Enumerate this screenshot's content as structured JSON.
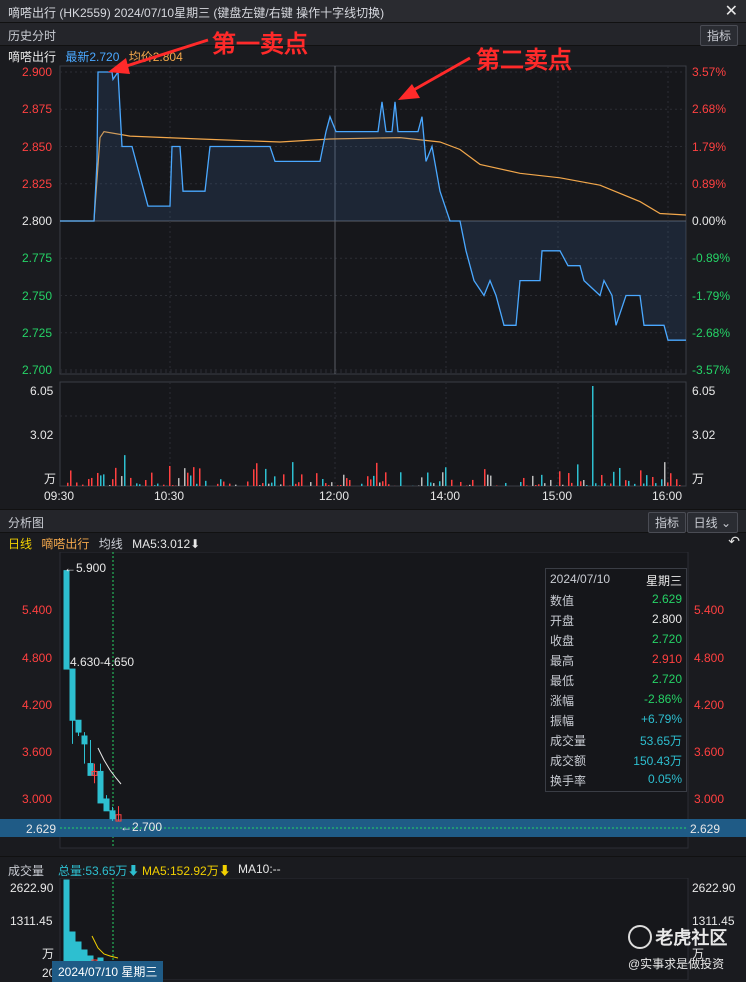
{
  "window": {
    "title": "嘀嗒出行 (HK2559)   2024/07/10星期三   (键盘左键/右键 操作十字线切换)"
  },
  "intraday": {
    "section_label": "历史分时",
    "indicator_button": "指标",
    "stock_name": "嘀嗒出行",
    "latest_label": "最新2.720",
    "avg_label": "均价2.804",
    "price_ticks": [
      "2.900",
      "2.875",
      "2.850",
      "2.825",
      "2.800",
      "2.775",
      "2.750",
      "2.725",
      "2.700"
    ],
    "pct_ticks": [
      "3.57%",
      "2.68%",
      "1.79%",
      "0.89%",
      "0.00%",
      "-0.89%",
      "-1.79%",
      "-2.68%",
      "-3.57%"
    ],
    "vol_ticks": [
      "6.05",
      "3.02",
      "万"
    ],
    "time_ticks": [
      "09:30",
      "10:30",
      "12:00",
      "14:00",
      "15:00",
      "16:00"
    ],
    "annotations": {
      "first": "第一卖点",
      "second": "第二卖点"
    },
    "colors": {
      "price_line": "#4aa8ff",
      "avg_line": "#f2a74b",
      "up": "#ff4040",
      "down": "#25d366"
    }
  },
  "daily": {
    "section_label": "分析图",
    "indicator_button": "指标",
    "period_select": "日线 ⌄",
    "period_label": "日线",
    "stock_name": "嘀嗒出行",
    "avg_toggle": "均线",
    "ma5_label": "MA5:3.012⬇",
    "reset_icon": "↶",
    "price_ticks": [
      "5.400",
      "4.800",
      "4.200",
      "3.600",
      "3.000"
    ],
    "high_label": "←5.900",
    "range_label": "4.630-4.650",
    "low_label": "←2.700",
    "cursor_price": "2.629",
    "info": {
      "date": "2024/07/10",
      "weekday": "星期三",
      "rows": [
        {
          "k": "数值",
          "v": "2.629",
          "c": "green"
        },
        {
          "k": "开盘",
          "v": "2.800",
          "c": "white"
        },
        {
          "k": "收盘",
          "v": "2.720",
          "c": "green"
        },
        {
          "k": "最高",
          "v": "2.910",
          "c": "red"
        },
        {
          "k": "最低",
          "v": "2.720",
          "c": "green"
        },
        {
          "k": "涨幅",
          "v": "-2.86%",
          "c": "green"
        },
        {
          "k": "振幅",
          "v": "+6.79%",
          "c": "cyan"
        },
        {
          "k": "成交量",
          "v": "53.65万",
          "c": "cyan"
        },
        {
          "k": "成交额",
          "v": "150.43万",
          "c": "cyan"
        },
        {
          "k": "换手率",
          "v": "0.05%",
          "c": "cyan"
        }
      ]
    }
  },
  "volume": {
    "section_label": "成交量",
    "total_label": "总量:53.65万⬇",
    "ma5_label": "MA5:152.92万⬇",
    "ma10_label": "MA10:--",
    "ticks": [
      "2622.90",
      "1311.45",
      "万"
    ],
    "bottom_tick": "20",
    "cursor_date": "2024/07/10 星期三"
  },
  "watermark": {
    "name": "老虎社区",
    "sub": "@实事求是做投资"
  }
}
